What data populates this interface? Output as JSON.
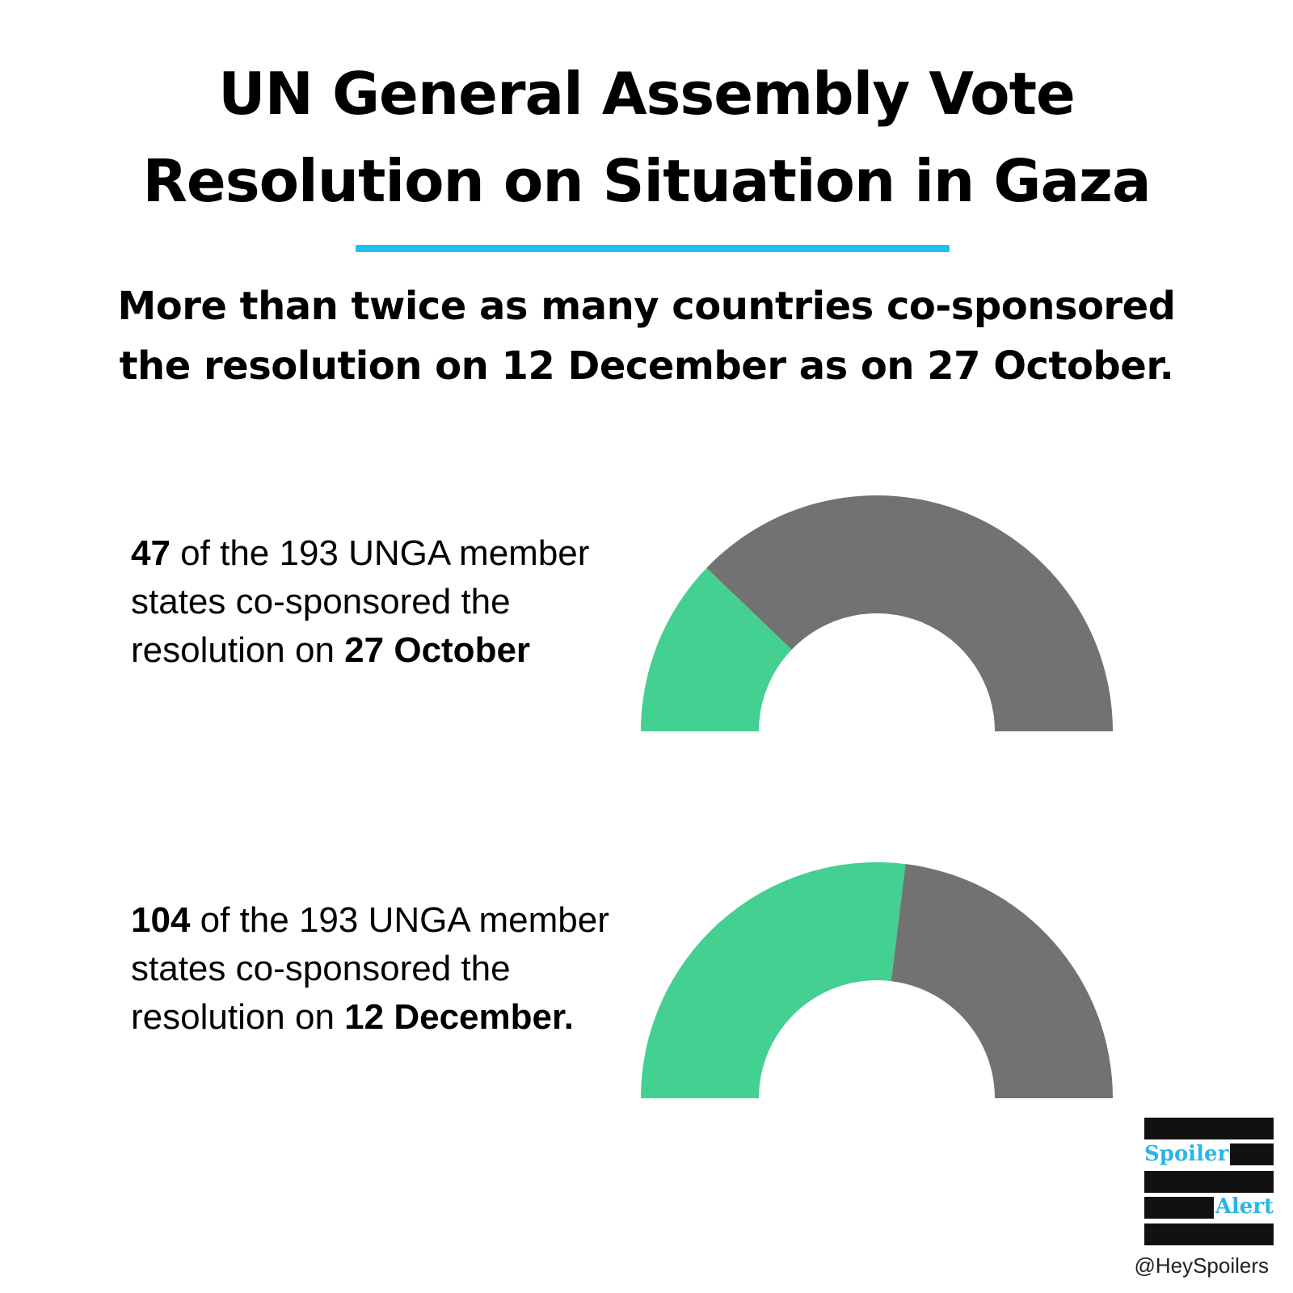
{
  "title": {
    "line1": "UN General Assembly Vote",
    "line2": "Resolution on Situation in Gaza"
  },
  "subtitle": {
    "line1": "More than twice as many countries co-sponsored",
    "line2": "the resolution on 12 December as on 27 October."
  },
  "colors": {
    "accent_rule": "#1cc3f0",
    "sponsored": "#44d090",
    "remaining": "#727272",
    "logo_text": "#26b7e8"
  },
  "chart_data": [
    {
      "type": "pie",
      "subtype": "half-donut gauge",
      "total": 193,
      "values": [
        47,
        146
      ],
      "text": {
        "count": "47",
        "mid": " of the 193 UNGA member states co-sponsored the resolution on ",
        "date": "27 October",
        "tail": ""
      }
    },
    {
      "type": "pie",
      "subtype": "half-donut gauge",
      "total": 193,
      "values": [
        104,
        89
      ],
      "text": {
        "count": "104",
        "mid": " of the 193 UNGA member states co-sponsored the resolution on ",
        "date": "12 December.",
        "tail": ""
      }
    }
  ],
  "logo": {
    "word1": "Spoiler",
    "word2": "Alert"
  },
  "handle": "@HeySpoilers"
}
